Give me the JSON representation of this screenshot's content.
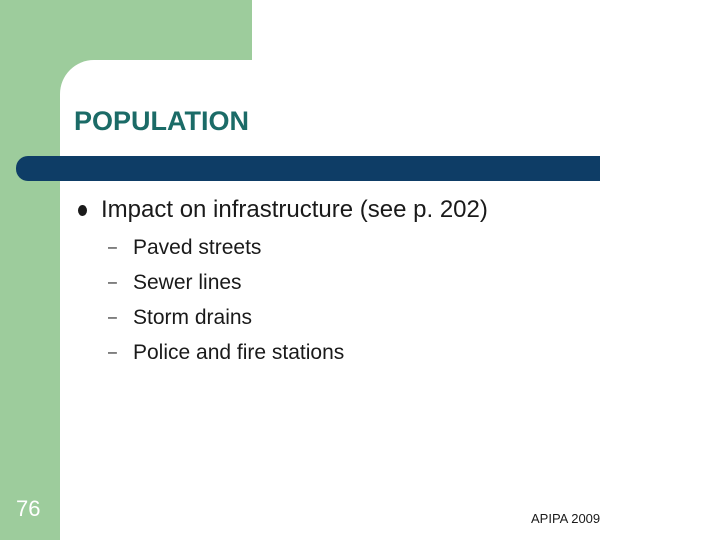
{
  "slide": {
    "title": "POPULATION",
    "bullet": "Impact on infrastructure (see p. 202)",
    "sub_items": [
      {
        "dash": "–",
        "text": "Paved streets"
      },
      {
        "dash": "–",
        "text": "Sewer lines"
      },
      {
        "dash": "–",
        "text": "Storm drains"
      },
      {
        "dash": "–",
        "text": "Police and fire stations"
      }
    ],
    "slide_number": "76",
    "footer": "APIPA 2009"
  },
  "colors": {
    "frame_green": "#9dcc9c",
    "title_teal": "#1b6b67",
    "bar_navy": "#0e3d66"
  }
}
